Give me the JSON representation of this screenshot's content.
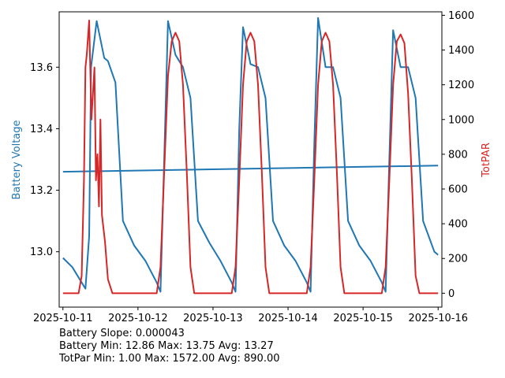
{
  "chart_data": {
    "type": "line",
    "xlabel": "",
    "ylabel_left": "Battery Voltage",
    "ylabel_right": "TotPAR",
    "x_tick_labels": [
      "2025-10-11",
      "2025-10-12",
      "2025-10-13",
      "2025-10-14",
      "2025-10-15",
      "2025-10-16"
    ],
    "x_range_days": [
      -0.05,
      5.05
    ],
    "ylim_left": [
      12.82,
      13.78
    ],
    "ylim_right": [
      -80,
      1620
    ],
    "yticks_left": [
      "13.0",
      "13.2",
      "13.4",
      "13.6"
    ],
    "yticks_left_values": [
      13.0,
      13.2,
      13.4,
      13.6
    ],
    "yticks_right": [
      "0",
      "200",
      "400",
      "600",
      "800",
      "1000",
      "1200",
      "1400",
      "1600"
    ],
    "yticks_right_values": [
      0,
      200,
      400,
      600,
      800,
      1000,
      1200,
      1400,
      1600
    ],
    "grid": false,
    "colors": {
      "battery": "#1f77b4",
      "par": "#d62728"
    },
    "series": [
      {
        "axis": "left",
        "x": [
          "2025-10-11 00:00",
          "2025-10-11 03:00",
          "2025-10-11 06:00",
          "2025-10-11 07:12",
          "2025-10-11 08:24",
          "2025-10-11 09:00",
          "2025-10-11 10:48",
          "2025-10-11 13:12",
          "2025-10-11 14:24",
          "2025-10-11 16:48",
          "2025-10-11 19:12",
          "2025-10-11 22:48",
          "2025-10-12 02:24",
          "2025-10-12 06:00",
          "2025-10-12 07:12",
          "2025-10-12 08:24",
          "2025-10-12 09:36",
          "2025-10-12 12:00",
          "2025-10-12 14:24",
          "2025-10-12 16:48",
          "2025-10-12 19:12",
          "2025-10-12 22:48",
          "2025-10-13 02:24",
          "2025-10-13 06:00",
          "2025-10-13 07:12",
          "2025-10-13 08:24",
          "2025-10-13 09:36",
          "2025-10-13 12:00",
          "2025-10-13 14:24",
          "2025-10-13 16:48",
          "2025-10-13 19:12",
          "2025-10-13 22:48",
          "2025-10-14 02:24",
          "2025-10-14 06:00",
          "2025-10-14 07:12",
          "2025-10-14 08:24",
          "2025-10-14 09:36",
          "2025-10-14 12:00",
          "2025-10-14 14:24",
          "2025-10-14 16:48",
          "2025-10-14 19:12",
          "2025-10-14 22:48",
          "2025-10-15 02:24",
          "2025-10-15 06:00",
          "2025-10-15 07:12",
          "2025-10-15 08:24",
          "2025-10-15 09:36",
          "2025-10-15 12:00",
          "2025-10-15 14:24",
          "2025-10-15 16:48",
          "2025-10-15 19:12",
          "2025-10-15 22:48",
          "2025-10-16 00:00"
        ],
        "y": [
          12.98,
          12.95,
          12.9,
          12.88,
          13.05,
          13.6,
          13.75,
          13.63,
          13.62,
          13.55,
          13.1,
          13.02,
          12.97,
          12.9,
          12.87,
          13.3,
          13.75,
          13.64,
          13.6,
          13.5,
          13.1,
          13.03,
          12.97,
          12.9,
          12.87,
          13.4,
          13.73,
          13.61,
          13.6,
          13.5,
          13.1,
          13.02,
          12.97,
          12.9,
          12.87,
          13.35,
          13.76,
          13.6,
          13.6,
          13.5,
          13.1,
          13.02,
          12.97,
          12.9,
          12.87,
          13.3,
          13.72,
          13.6,
          13.6,
          13.5,
          13.1,
          13.0,
          12.99
        ]
      },
      {
        "axis": "left",
        "x": [
          "2025-10-11 00:00",
          "2025-10-16 00:00"
        ],
        "y": [
          13.26,
          13.28
        ]
      },
      {
        "axis": "right",
        "x": [
          "2025-10-11 00:00",
          "2025-10-11 05:00",
          "2025-10-11 06:00",
          "2025-10-11 06:43",
          "2025-10-11 07:12",
          "2025-10-11 07:40",
          "2025-10-11 08:24",
          "2025-10-11 09:07",
          "2025-10-11 10:05",
          "2025-10-11 10:34",
          "2025-10-11 11:02",
          "2025-10-11 11:31",
          "2025-10-11 12:00",
          "2025-10-11 12:29",
          "2025-10-11 13:26",
          "2025-10-11 14:24",
          "2025-10-11 15:50",
          "2025-10-11 17:00",
          "2025-10-11 18:00",
          "2025-10-12 06:00",
          "2025-10-12 07:12",
          "2025-10-12 08:24",
          "2025-10-12 09:36",
          "2025-10-12 10:48",
          "2025-10-12 12:00",
          "2025-10-12 13:12",
          "2025-10-12 14:24",
          "2025-10-12 15:36",
          "2025-10-12 16:48",
          "2025-10-12 18:00",
          "2025-10-13 06:00",
          "2025-10-13 07:12",
          "2025-10-13 08:24",
          "2025-10-13 09:36",
          "2025-10-13 10:48",
          "2025-10-13 12:00",
          "2025-10-13 13:12",
          "2025-10-13 14:24",
          "2025-10-13 15:36",
          "2025-10-13 16:48",
          "2025-10-13 18:00",
          "2025-10-14 06:00",
          "2025-10-14 07:12",
          "2025-10-14 08:24",
          "2025-10-14 09:36",
          "2025-10-14 10:48",
          "2025-10-14 12:00",
          "2025-10-14 13:12",
          "2025-10-14 14:24",
          "2025-10-14 15:36",
          "2025-10-14 16:48",
          "2025-10-14 18:00",
          "2025-10-15 06:00",
          "2025-10-15 07:12",
          "2025-10-15 08:24",
          "2025-10-15 09:36",
          "2025-10-15 10:48",
          "2025-10-15 12:00",
          "2025-10-15 13:12",
          "2025-10-15 14:24",
          "2025-10-15 15:36",
          "2025-10-15 16:48",
          "2025-10-15 18:00",
          "2025-10-16 00:00"
        ],
        "y": [
          0,
          0,
          100,
          650,
          1300,
          1380,
          1570,
          1000,
          1300,
          650,
          800,
          500,
          1000,
          450,
          300,
          80,
          0,
          0,
          0,
          0,
          150,
          700,
          1250,
          1450,
          1500,
          1450,
          1200,
          700,
          150,
          0,
          0,
          150,
          650,
          1200,
          1450,
          1500,
          1450,
          1200,
          700,
          150,
          0,
          0,
          150,
          650,
          1200,
          1450,
          1500,
          1450,
          1200,
          700,
          150,
          0,
          0,
          150,
          650,
          1200,
          1450,
          1490,
          1440,
          1150,
          650,
          100,
          0,
          0
        ]
      }
    ]
  },
  "stats": {
    "line1": "Battery Slope: 0.000043",
    "line2": "Battery Min: 12.86 Max: 13.75 Avg: 13.27",
    "line3": "TotPar Min: 1.00 Max: 1572.00 Avg: 890.00"
  }
}
